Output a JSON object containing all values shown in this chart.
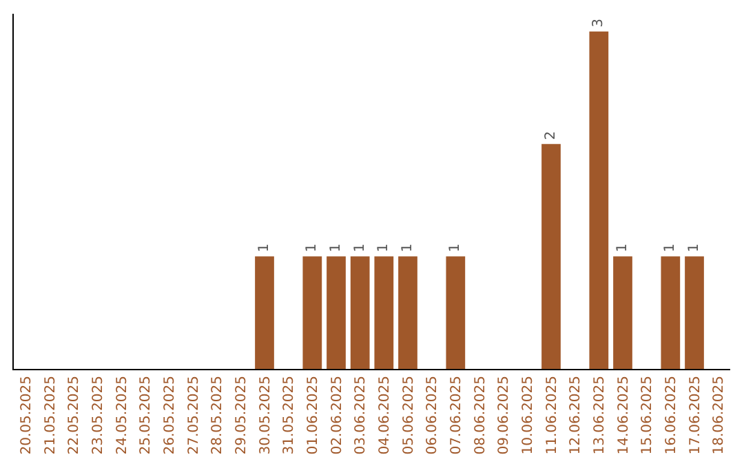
{
  "chart_data": {
    "type": "bar",
    "categories": [
      "20.05.2025",
      "21.05.2025",
      "22.05.2025",
      "23.05.2025",
      "24.05.2025",
      "25.05.2025",
      "26.05.2025",
      "27.05.2025",
      "28.05.2025",
      "29.05.2025",
      "30.05.2025",
      "31.05.2025",
      "01.06.2025",
      "02.06.2025",
      "03.06.2025",
      "04.06.2025",
      "05.06.2025",
      "06.06.2025",
      "07.06.2025",
      "08.06.2025",
      "09.06.2025",
      "10.06.2025",
      "11.06.2025",
      "12.06.2025",
      "13.06.2025",
      "14.06.2025",
      "15.06.2025",
      "16.06.2025",
      "17.06.2025",
      "18.06.2025"
    ],
    "values": [
      0,
      0,
      0,
      0,
      0,
      0,
      0,
      0,
      0,
      0,
      1,
      0,
      1,
      1,
      1,
      1,
      1,
      0,
      1,
      0,
      0,
      0,
      2,
      0,
      3,
      1,
      0,
      1,
      1,
      0
    ],
    "value_labels": [
      null,
      null,
      null,
      null,
      null,
      null,
      null,
      null,
      null,
      null,
      "1",
      null,
      "1",
      "1",
      "1",
      "1",
      "1",
      null,
      "1",
      null,
      null,
      null,
      "2",
      null,
      "3",
      "1",
      null,
      "1",
      "1",
      null
    ],
    "color": "#a0582a",
    "tick_labels": "x"
  }
}
